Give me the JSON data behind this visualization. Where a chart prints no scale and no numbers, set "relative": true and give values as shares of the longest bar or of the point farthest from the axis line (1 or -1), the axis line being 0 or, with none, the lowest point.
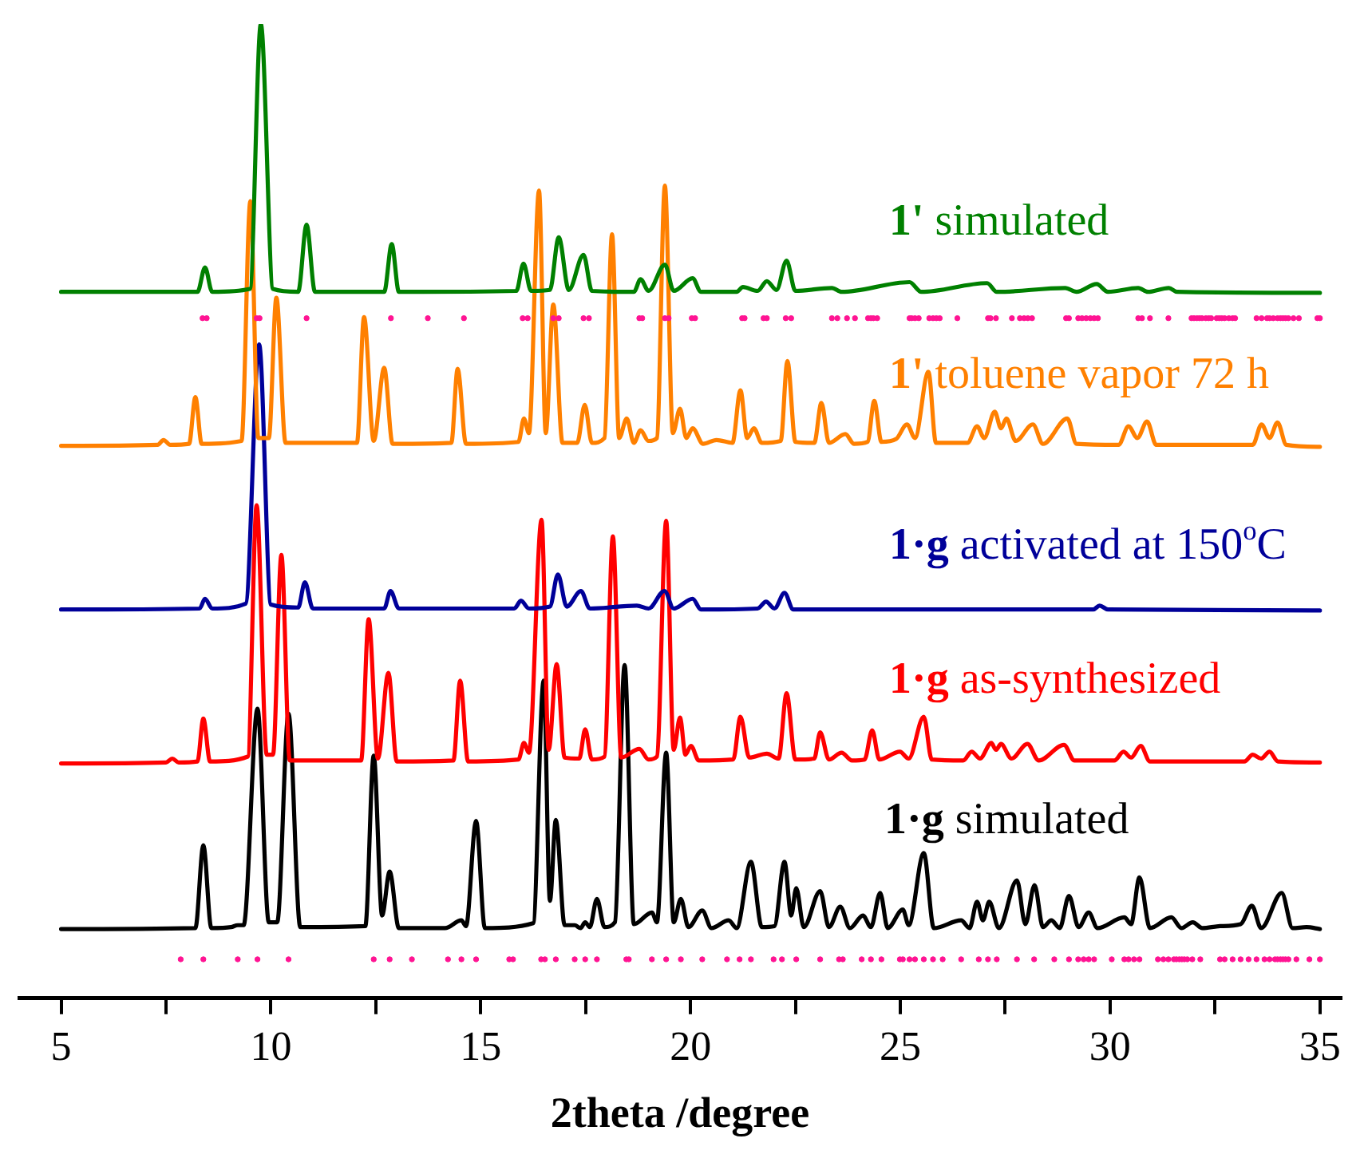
{
  "chart_data": {
    "type": "line",
    "xlabel": "2theta /degree",
    "relative": true,
    "grid": false,
    "legend": false,
    "tick_labels": "x",
    "marker": "none",
    "line_style": "solid",
    "xlim": [
      4,
      35.5
    ],
    "xticks": [
      5,
      {
        "value": 7.5,
        "label": null
      },
      10,
      {
        "value": 12.5,
        "label": null
      },
      15,
      {
        "value": 17.5,
        "label": null
      },
      20,
      {
        "value": 22.5,
        "label": null
      },
      25,
      {
        "value": 27.5,
        "label": null
      },
      30,
      {
        "value": 32.5,
        "label": null
      },
      35
    ],
    "series": [
      {
        "name": "1' simulated",
        "color": "#008000",
        "x": [
          5,
          8.25,
          8.43,
          8.6,
          9.5,
          9.76,
          10.05,
          10.65,
          10.85,
          11.05,
          12.7,
          12.88,
          13.05,
          15.85,
          16.02,
          16.2,
          16.65,
          16.86,
          17.1,
          17.45,
          17.65,
          18.65,
          18.81,
          19.0,
          19.39,
          19.6,
          20.05,
          20.25,
          21.1,
          21.25,
          21.6,
          21.82,
          22.05,
          22.29,
          22.5,
          23.37,
          23.6,
          25.22,
          25.5,
          27.07,
          27.3,
          28.93,
          29.2,
          29.68,
          29.95,
          30.67,
          30.9,
          31.4,
          31.6,
          35
        ],
        "values": [
          0.725,
          0.725,
          0.75,
          0.725,
          0.728,
          1.0,
          0.728,
          0.725,
          0.794,
          0.725,
          0.725,
          0.774,
          0.725,
          0.726,
          0.754,
          0.726,
          0.727,
          0.781,
          0.727,
          0.763,
          0.726,
          0.725,
          0.738,
          0.726,
          0.753,
          0.726,
          0.739,
          0.725,
          0.725,
          0.73,
          0.726,
          0.736,
          0.727,
          0.757,
          0.726,
          0.729,
          0.725,
          0.735,
          0.725,
          0.734,
          0.725,
          0.729,
          0.725,
          0.733,
          0.725,
          0.729,
          0.725,
          0.729,
          0.725,
          0.724
        ]
      },
      {
        "type": "scatter",
        "marker": "circle",
        "color": "#ff1493",
        "x": [
          8.37,
          8.47,
          9.66,
          9.73,
          10.85,
          12.86,
          13.74,
          14.6,
          16.0,
          16.12,
          16.73,
          16.86,
          17.45,
          17.58,
          18.78,
          18.85,
          19.39,
          19.48,
          20.03,
          20.11,
          21.23,
          21.29,
          21.74,
          21.82,
          22.27,
          22.4,
          23.37,
          23.5,
          23.73,
          23.92,
          24.23,
          24.3,
          24.36,
          24.45,
          25.22,
          25.27,
          25.35,
          25.44,
          25.69,
          25.78,
          25.86,
          25.94,
          26.36,
          27.09,
          27.15,
          27.28,
          27.66,
          27.85,
          27.95,
          28.04,
          28.14,
          28.95,
          29.02,
          29.24,
          29.33,
          29.43,
          29.53,
          29.62,
          29.71,
          30.67,
          30.76,
          30.95,
          31.39,
          31.94,
          32.0,
          32.07,
          32.13,
          32.19,
          32.28,
          32.35,
          32.41,
          32.54,
          32.6,
          32.66,
          32.73,
          32.83,
          32.92,
          32.98,
          33.49,
          33.61,
          33.74,
          33.8,
          33.89,
          33.99,
          34.06,
          34.12,
          34.18,
          34.25,
          34.37,
          34.5,
          34.94,
          35.0
        ],
        "values": [
          0.698,
          0.698,
          0.698,
          0.698,
          0.698,
          0.698,
          0.698,
          0.698,
          0.698,
          0.698,
          0.698,
          0.698,
          0.698,
          0.698,
          0.698,
          0.698,
          0.698,
          0.698,
          0.698,
          0.698,
          0.698,
          0.698,
          0.698,
          0.698,
          0.698,
          0.698,
          0.698,
          0.698,
          0.698,
          0.698,
          0.698,
          0.698,
          0.698,
          0.698,
          0.698,
          0.698,
          0.698,
          0.698,
          0.698,
          0.698,
          0.698,
          0.698,
          0.698,
          0.698,
          0.698,
          0.698,
          0.698,
          0.698,
          0.698,
          0.698,
          0.698,
          0.698,
          0.698,
          0.698,
          0.698,
          0.698,
          0.698,
          0.698,
          0.698,
          0.698,
          0.698,
          0.698,
          0.698,
          0.698,
          0.698,
          0.698,
          0.698,
          0.698,
          0.698,
          0.698,
          0.698,
          0.698,
          0.698,
          0.698,
          0.698,
          0.698,
          0.698,
          0.698,
          0.698,
          0.698,
          0.698,
          0.698,
          0.698,
          0.698,
          0.698,
          0.698,
          0.698,
          0.698,
          0.698,
          0.698,
          0.698,
          0.698
        ]
      },
      {
        "name": "1' toluene vapor 72 h",
        "color": "#ff8000",
        "x": [
          5,
          7.3,
          7.44,
          7.6,
          8.05,
          8.2,
          8.35,
          9.3,
          9.51,
          9.7,
          9.95,
          10.13,
          10.35,
          12.05,
          12.22,
          12.45,
          12.7,
          12.9,
          14.3,
          14.45,
          14.65,
          15.9,
          16.03,
          16.15,
          16.39,
          16.55,
          16.73,
          16.95,
          17.3,
          17.48,
          17.65,
          17.95,
          18.13,
          18.3,
          18.48,
          18.65,
          18.81,
          19.0,
          19.2,
          19.39,
          19.58,
          19.75,
          19.9,
          20.05,
          20.3,
          20.62,
          21.0,
          21.19,
          21.35,
          21.51,
          21.7,
          22.15,
          22.31,
          22.5,
          22.95,
          23.12,
          23.3,
          23.69,
          23.9,
          24.22,
          24.38,
          24.55,
          24.9,
          25.16,
          25.35,
          25.67,
          25.85,
          26.6,
          26.83,
          27.0,
          27.25,
          27.4,
          27.53,
          27.75,
          28.16,
          28.4,
          28.98,
          29.2,
          30.2,
          30.44,
          30.65,
          30.88,
          31.1,
          33.4,
          33.61,
          33.8,
          33.99,
          34.2,
          35
        ],
        "values": [
          0.567,
          0.568,
          0.573,
          0.568,
          0.569,
          0.617,
          0.569,
          0.572,
          0.818,
          0.575,
          0.575,
          0.719,
          0.57,
          0.57,
          0.699,
          0.572,
          0.647,
          0.569,
          0.57,
          0.646,
          0.569,
          0.571,
          0.595,
          0.58,
          0.829,
          0.58,
          0.712,
          0.57,
          0.57,
          0.609,
          0.57,
          0.575,
          0.784,
          0.575,
          0.595,
          0.57,
          0.583,
          0.572,
          0.575,
          0.834,
          0.58,
          0.605,
          0.575,
          0.585,
          0.569,
          0.573,
          0.57,
          0.624,
          0.575,
          0.585,
          0.57,
          0.572,
          0.654,
          0.571,
          0.57,
          0.611,
          0.57,
          0.579,
          0.569,
          0.571,
          0.613,
          0.571,
          0.574,
          0.589,
          0.575,
          0.643,
          0.57,
          0.57,
          0.587,
          0.575,
          0.602,
          0.585,
          0.595,
          0.572,
          0.589,
          0.569,
          0.595,
          0.569,
          0.568,
          0.587,
          0.575,
          0.592,
          0.568,
          0.568,
          0.589,
          0.575,
          0.591,
          0.568,
          0.566
        ]
      },
      {
        "name": "1·g activated at 150$^{o}$C",
        "color": "#000099",
        "x": [
          5,
          8.3,
          8.43,
          8.6,
          9.4,
          9.72,
          10.0,
          10.65,
          10.81,
          11.0,
          12.7,
          12.85,
          13.05,
          15.8,
          15.96,
          16.15,
          16.65,
          16.84,
          17.05,
          17.39,
          17.6,
          18.72,
          19.0,
          19.38,
          19.6,
          20.05,
          20.25,
          21.6,
          21.8,
          22.0,
          22.24,
          22.45,
          29.6,
          29.75,
          29.95,
          35
        ],
        "values": [
          0.399,
          0.4,
          0.41,
          0.4,
          0.405,
          0.671,
          0.404,
          0.401,
          0.427,
          0.4,
          0.4,
          0.418,
          0.4,
          0.4,
          0.408,
          0.4,
          0.402,
          0.435,
          0.402,
          0.418,
          0.4,
          0.403,
          0.4,
          0.418,
          0.4,
          0.41,
          0.399,
          0.4,
          0.407,
          0.4,
          0.416,
          0.399,
          0.399,
          0.403,
          0.399,
          0.398
        ]
      },
      {
        "name": "1·g as-synthesized",
        "color": "#ff0000",
        "x": [
          5,
          7.5,
          7.65,
          7.8,
          8.25,
          8.39,
          8.55,
          9.45,
          9.66,
          9.9,
          10.05,
          10.25,
          10.45,
          12.15,
          12.33,
          12.55,
          12.8,
          13.0,
          14.35,
          14.51,
          14.7,
          15.9,
          16.03,
          16.15,
          16.45,
          16.62,
          16.81,
          17.0,
          17.35,
          17.49,
          17.65,
          17.95,
          18.15,
          18.35,
          18.78,
          19.0,
          19.2,
          19.42,
          19.6,
          19.75,
          19.88,
          20.01,
          20.2,
          21.02,
          21.19,
          21.4,
          21.82,
          22.1,
          22.29,
          22.5,
          22.95,
          23.09,
          23.3,
          23.6,
          23.85,
          24.15,
          24.33,
          24.5,
          24.99,
          25.2,
          25.56,
          25.75,
          26.5,
          26.7,
          26.9,
          27.17,
          27.28,
          27.4,
          27.65,
          28.03,
          28.3,
          28.9,
          29.15,
          30.1,
          30.32,
          30.5,
          30.73,
          30.95,
          33.2,
          33.4,
          33.6,
          33.8,
          34.0,
          35
        ],
        "values": [
          0.241,
          0.242,
          0.246,
          0.242,
          0.243,
          0.287,
          0.243,
          0.248,
          0.506,
          0.25,
          0.25,
          0.455,
          0.244,
          0.244,
          0.389,
          0.246,
          0.334,
          0.243,
          0.244,
          0.326,
          0.243,
          0.245,
          0.262,
          0.252,
          0.491,
          0.255,
          0.343,
          0.247,
          0.246,
          0.276,
          0.245,
          0.248,
          0.474,
          0.247,
          0.256,
          0.245,
          0.248,
          0.49,
          0.255,
          0.288,
          0.25,
          0.259,
          0.244,
          0.245,
          0.289,
          0.247,
          0.251,
          0.246,
          0.313,
          0.245,
          0.246,
          0.273,
          0.245,
          0.252,
          0.244,
          0.245,
          0.275,
          0.245,
          0.253,
          0.246,
          0.289,
          0.245,
          0.244,
          0.253,
          0.246,
          0.262,
          0.255,
          0.261,
          0.246,
          0.261,
          0.244,
          0.26,
          0.244,
          0.244,
          0.253,
          0.247,
          0.259,
          0.243,
          0.243,
          0.25,
          0.246,
          0.253,
          0.243,
          0.242
        ]
      },
      {
        "name": "1·g simulated",
        "color": "#000000",
        "x": [
          5,
          8.2,
          8.39,
          8.58,
          9.05,
          9.21,
          9.35,
          9.68,
          9.95,
          10.15,
          10.42,
          10.7,
          12.25,
          12.45,
          12.65,
          12.83,
          13.05,
          14.15,
          14.54,
          14.65,
          14.89,
          15.1,
          16.25,
          16.5,
          16.65,
          16.79,
          17.0,
          17.24,
          17.38,
          17.49,
          17.6,
          17.77,
          17.95,
          18.2,
          18.43,
          18.65,
          19.08,
          19.2,
          19.42,
          19.6,
          19.77,
          19.95,
          20.28,
          20.5,
          20.91,
          21.1,
          21.44,
          21.7,
          22.0,
          22.24,
          22.4,
          22.52,
          22.7,
          23.09,
          23.3,
          23.57,
          23.8,
          24.11,
          24.3,
          24.52,
          24.7,
          25.06,
          25.2,
          25.56,
          25.8,
          26.45,
          26.65,
          26.83,
          26.97,
          27.12,
          27.35,
          27.78,
          27.98,
          28.2,
          28.4,
          28.6,
          28.8,
          29.02,
          29.25,
          29.49,
          29.7,
          30.34,
          30.5,
          30.7,
          30.95,
          31.46,
          31.7,
          31.97,
          32.2,
          32.62,
          33.11,
          33.38,
          33.6,
          34.09,
          34.35,
          34.68,
          35
        ],
        "values": [
          0.071,
          0.072,
          0.157,
          0.072,
          0.073,
          0.075,
          0.075,
          0.297,
          0.078,
          0.078,
          0.292,
          0.073,
          0.074,
          0.249,
          0.085,
          0.13,
          0.072,
          0.072,
          0.08,
          0.074,
          0.182,
          0.072,
          0.077,
          0.326,
          0.1,
          0.183,
          0.075,
          0.075,
          0.072,
          0.078,
          0.073,
          0.102,
          0.073,
          0.078,
          0.342,
          0.076,
          0.088,
          0.078,
          0.252,
          0.078,
          0.102,
          0.073,
          0.09,
          0.072,
          0.08,
          0.072,
          0.14,
          0.073,
          0.074,
          0.14,
          0.085,
          0.113,
          0.073,
          0.11,
          0.073,
          0.094,
          0.072,
          0.085,
          0.073,
          0.108,
          0.072,
          0.091,
          0.075,
          0.149,
          0.072,
          0.08,
          0.072,
          0.099,
          0.08,
          0.099,
          0.072,
          0.121,
          0.076,
          0.116,
          0.073,
          0.08,
          0.072,
          0.105,
          0.073,
          0.088,
          0.072,
          0.083,
          0.076,
          0.124,
          0.072,
          0.083,
          0.072,
          0.078,
          0.072,
          0.074,
          0.076,
          0.095,
          0.072,
          0.108,
          0.072,
          0.073,
          0.071
        ]
      },
      {
        "type": "scatter",
        "marker": "circle",
        "color": "#ff1493",
        "x": [
          7.85,
          8.39,
          9.21,
          9.68,
          10.42,
          12.45,
          12.83,
          13.36,
          14.22,
          14.54,
          14.89,
          15.68,
          15.77,
          16.44,
          16.53,
          16.79,
          17.24,
          17.49,
          17.77,
          18.47,
          18.53,
          19.08,
          19.42,
          19.77,
          20.28,
          20.87,
          21.17,
          21.44,
          21.98,
          22.18,
          22.52,
          23.09,
          23.54,
          23.63,
          24.08,
          24.3,
          24.55,
          24.99,
          25.06,
          25.22,
          25.35,
          25.56,
          25.78,
          26.01,
          26.45,
          26.87,
          27.09,
          27.3,
          27.78,
          28.19,
          28.67,
          29.02,
          29.24,
          29.37,
          29.49,
          29.62,
          30.04,
          30.34,
          30.44,
          30.57,
          30.7,
          31.14,
          31.27,
          31.39,
          31.52,
          31.58,
          31.65,
          31.71,
          31.77,
          31.84,
          31.96,
          32.15,
          32.62,
          32.73,
          32.92,
          33.11,
          33.3,
          33.49,
          33.68,
          33.8,
          33.93,
          33.99,
          34.06,
          34.12,
          34.18,
          34.25,
          34.44,
          34.75,
          35.0
        ],
        "values": [
          0.04,
          0.04,
          0.04,
          0.04,
          0.04,
          0.04,
          0.04,
          0.04,
          0.04,
          0.04,
          0.04,
          0.04,
          0.04,
          0.04,
          0.04,
          0.04,
          0.04,
          0.04,
          0.04,
          0.04,
          0.04,
          0.04,
          0.04,
          0.04,
          0.04,
          0.04,
          0.04,
          0.04,
          0.04,
          0.04,
          0.04,
          0.04,
          0.04,
          0.04,
          0.04,
          0.04,
          0.04,
          0.04,
          0.04,
          0.04,
          0.04,
          0.04,
          0.04,
          0.04,
          0.04,
          0.04,
          0.04,
          0.04,
          0.04,
          0.04,
          0.04,
          0.04,
          0.04,
          0.04,
          0.04,
          0.04,
          0.04,
          0.04,
          0.04,
          0.04,
          0.04,
          0.04,
          0.04,
          0.04,
          0.04,
          0.04,
          0.04,
          0.04,
          0.04,
          0.04,
          0.04,
          0.04,
          0.04,
          0.04,
          0.04,
          0.04,
          0.04,
          0.04,
          0.04,
          0.04,
          0.04,
          0.04,
          0.04,
          0.04,
          0.04,
          0.04,
          0.04,
          0.04,
          0.04
        ]
      }
    ]
  }
}
